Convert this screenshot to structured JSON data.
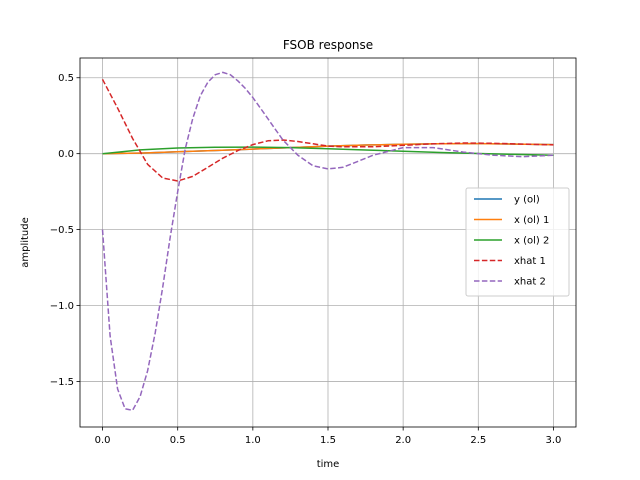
{
  "chart_data": {
    "type": "line",
    "title": "FSOB response",
    "xlabel": "time",
    "ylabel": "amplitude",
    "xlim": [
      -0.15,
      3.15
    ],
    "ylim": [
      -1.8,
      0.63
    ],
    "xticks": [
      0.0,
      0.5,
      1.0,
      1.5,
      2.0,
      2.5,
      3.0
    ],
    "xtick_labels": [
      "0.0",
      "0.5",
      "1.0",
      "1.5",
      "2.0",
      "2.5",
      "3.0"
    ],
    "yticks": [
      -1.5,
      -1.0,
      -0.5,
      0.0,
      0.5
    ],
    "ytick_labels": [
      "−1.5",
      "−1.0",
      "−0.5",
      "0.0",
      "0.5"
    ],
    "grid": true,
    "legend_position": "center-right",
    "series": [
      {
        "name": "y (ol)",
        "color": "#1f77b4",
        "style": "solid",
        "x": [
          0,
          0.25,
          0.5,
          0.75,
          1.0,
          1.25,
          1.5,
          1.75,
          2.0,
          2.25,
          2.5,
          2.75,
          3.0
        ],
        "y": [
          0,
          0.004,
          0.012,
          0.021,
          0.03,
          0.04,
          0.05,
          0.057,
          0.062,
          0.065,
          0.066,
          0.063,
          0.06
        ]
      },
      {
        "name": "x (ol) 1",
        "color": "#ff7f0e",
        "style": "solid",
        "x": [
          0,
          0.25,
          0.5,
          0.75,
          1.0,
          1.25,
          1.5,
          1.75,
          2.0,
          2.25,
          2.5,
          2.75,
          3.0
        ],
        "y": [
          0,
          0.004,
          0.012,
          0.021,
          0.03,
          0.04,
          0.05,
          0.057,
          0.062,
          0.065,
          0.066,
          0.063,
          0.06
        ]
      },
      {
        "name": "x (ol) 2",
        "color": "#2ca02c",
        "style": "solid",
        "x": [
          0,
          0.25,
          0.5,
          0.75,
          1.0,
          1.25,
          1.5,
          1.75,
          2.0,
          2.25,
          2.5,
          2.75,
          3.0
        ],
        "y": [
          0,
          0.025,
          0.037,
          0.042,
          0.043,
          0.04,
          0.032,
          0.024,
          0.016,
          0.008,
          0.001,
          -0.005,
          -0.01
        ]
      },
      {
        "name": "xhat 1",
        "color": "#d62728",
        "style": "dashed",
        "x": [
          0,
          0.1,
          0.2,
          0.3,
          0.4,
          0.5,
          0.6,
          0.7,
          0.8,
          0.9,
          1.0,
          1.1,
          1.2,
          1.3,
          1.4,
          1.5,
          1.6,
          1.8,
          2.0,
          2.2,
          2.4,
          2.6,
          2.8,
          3.0
        ],
        "y": [
          0.49,
          0.3,
          0.1,
          -0.07,
          -0.16,
          -0.18,
          -0.15,
          -0.09,
          -0.03,
          0.02,
          0.06,
          0.085,
          0.09,
          0.08,
          0.065,
          0.05,
          0.045,
          0.045,
          0.055,
          0.065,
          0.07,
          0.068,
          0.063,
          0.058
        ]
      },
      {
        "name": "xhat 2",
        "color": "#9467bd",
        "style": "dashed",
        "x": [
          0,
          0.05,
          0.1,
          0.15,
          0.2,
          0.25,
          0.3,
          0.35,
          0.4,
          0.45,
          0.5,
          0.55,
          0.6,
          0.65,
          0.7,
          0.75,
          0.8,
          0.85,
          0.9,
          0.95,
          1.0,
          1.05,
          1.1,
          1.15,
          1.2,
          1.3,
          1.4,
          1.5,
          1.6,
          1.7,
          1.8,
          2.0,
          2.2,
          2.4,
          2.6,
          2.8,
          3.0
        ],
        "y": [
          -0.5,
          -1.2,
          -1.55,
          -1.68,
          -1.69,
          -1.6,
          -1.43,
          -1.18,
          -0.88,
          -0.55,
          -0.25,
          0.03,
          0.23,
          0.38,
          0.47,
          0.52,
          0.535,
          0.52,
          0.48,
          0.43,
          0.37,
          0.3,
          0.23,
          0.16,
          0.09,
          -0.01,
          -0.08,
          -0.1,
          -0.09,
          -0.05,
          -0.01,
          0.04,
          0.04,
          0.01,
          -0.01,
          -0.02,
          -0.01
        ]
      }
    ]
  }
}
